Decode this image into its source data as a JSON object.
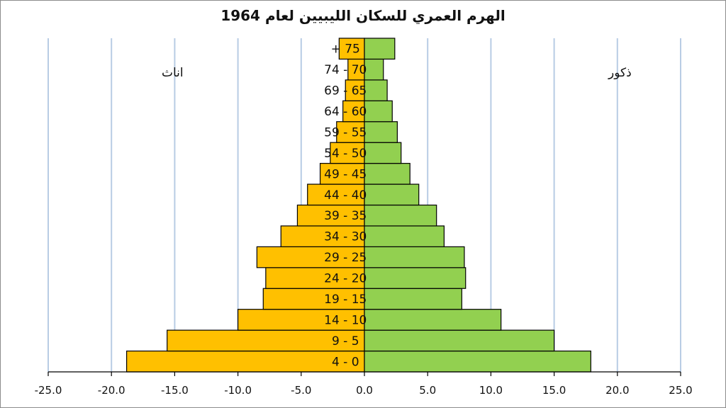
{
  "chart_data": {
    "type": "bar",
    "orientation": "horizontal",
    "title": "الهرم العمري للسكان الليبيين لعام 1964",
    "categories": [
      "4 - 0",
      "9 - 5",
      "14 - 10",
      "19 - 15",
      "24 - 20",
      "29 - 25",
      "34 - 30",
      "39 - 35",
      "44 - 40",
      "49 - 45",
      "54 - 50",
      "59 - 55",
      "64 - 60",
      "69 - 65",
      "74 - 70",
      "+ 75"
    ],
    "series": [
      {
        "name": "اناث",
        "color": "#ffc000",
        "values": [
          -18.8,
          -15.6,
          -10.0,
          -8.0,
          -7.8,
          -8.5,
          -6.6,
          -5.3,
          -4.5,
          -3.5,
          -2.7,
          -2.2,
          -1.7,
          -1.5,
          -1.3,
          -2.0
        ]
      },
      {
        "name": "ذكور",
        "color": "#92d050",
        "values": [
          17.9,
          15.0,
          10.8,
          7.7,
          8.0,
          7.9,
          6.3,
          5.7,
          4.3,
          3.6,
          2.9,
          2.6,
          2.2,
          1.8,
          1.5,
          2.4
        ]
      }
    ],
    "xlim": [
      -25,
      25
    ],
    "x_ticks": [
      -25,
      -20,
      -15,
      -10,
      -5,
      0,
      5,
      10,
      15,
      20,
      25
    ],
    "x_tick_labels": [
      "-25.0",
      "-20.0",
      "-15.0",
      "-10.0",
      "-5.0",
      "0.0",
      "5.0",
      "10.0",
      "15.0",
      "20.0",
      "25.0"
    ],
    "grid": "vertical",
    "grid_color": "#b8cce4",
    "left_label": "اناث",
    "right_label": "ذكور",
    "xlabel": "",
    "ylabel": ""
  }
}
